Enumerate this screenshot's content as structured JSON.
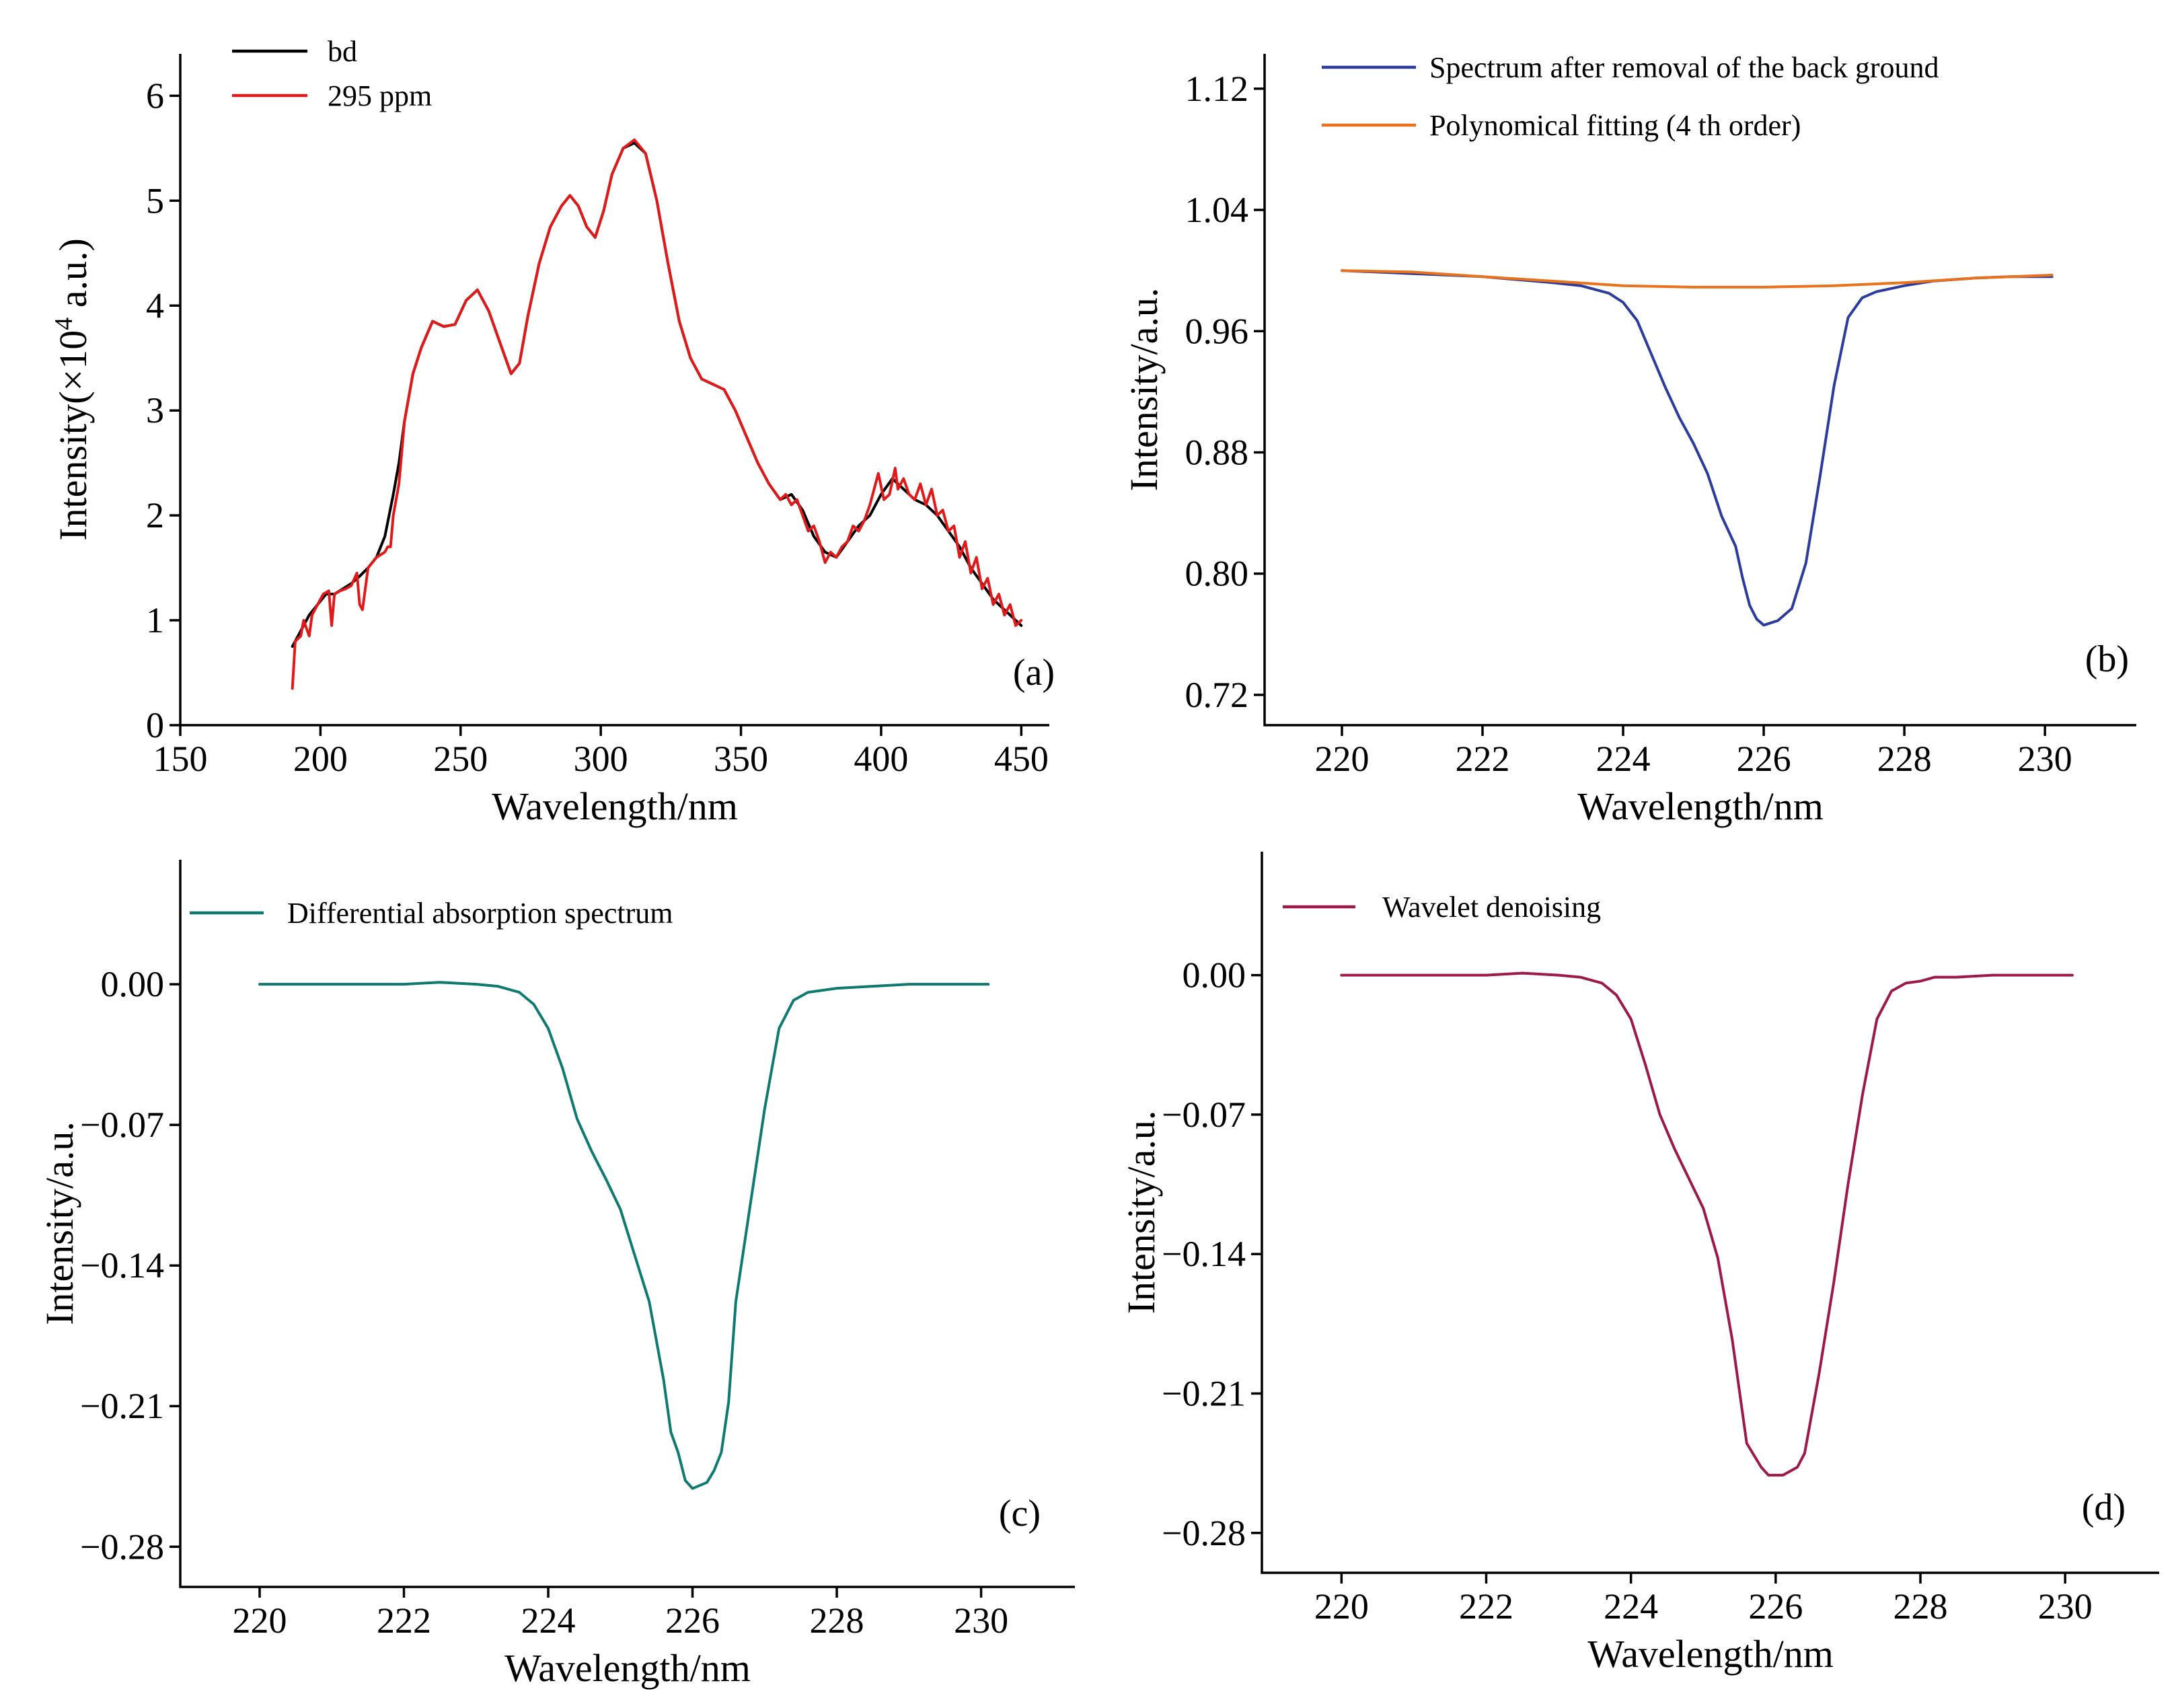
{
  "chart_data": [
    {
      "panel": "(a)",
      "type": "line",
      "xlabel": "Wavelength/nm",
      "ylabel_prefix": "Intensity(×10",
      "ylabel_sup": "4",
      "ylabel_suffix": " a.u.)",
      "xlim": [
        150,
        460
      ],
      "ylim": [
        0,
        6.4
      ],
      "xticks": [
        150,
        200,
        250,
        300,
        350,
        400,
        450
      ],
      "yticks": [
        0,
        1,
        2,
        3,
        4,
        5,
        6
      ],
      "xtick_labels": [
        "150",
        "200",
        "250",
        "300",
        "350",
        "400",
        "450"
      ],
      "ytick_labels": [
        "0",
        "1",
        "2",
        "3",
        "4",
        "5",
        "6"
      ],
      "legend_position": "top-left",
      "series": [
        {
          "name": "bd",
          "color": "#000000",
          "x": [
            190,
            193,
            196,
            199,
            202,
            205,
            208,
            211,
            214,
            217,
            220,
            223,
            226,
            228,
            230,
            233,
            236,
            240,
            244,
            248,
            252,
            256,
            260,
            264,
            268,
            271,
            274,
            278,
            282,
            286,
            289,
            292,
            295,
            298,
            301,
            304,
            308,
            312,
            316,
            320,
            324,
            328,
            332,
            336,
            340,
            344,
            348,
            352,
            356,
            360,
            364,
            368,
            372,
            376,
            380,
            384,
            388,
            392,
            396,
            400,
            404,
            408,
            412,
            416,
            420,
            424,
            428,
            432,
            436,
            440,
            444,
            448,
            450
          ],
          "y": [
            0.75,
            0.9,
            1.05,
            1.15,
            1.25,
            1.25,
            1.3,
            1.35,
            1.42,
            1.5,
            1.6,
            1.8,
            2.2,
            2.5,
            2.9,
            3.35,
            3.6,
            3.85,
            3.8,
            3.82,
            4.05,
            4.15,
            3.95,
            3.65,
            3.35,
            3.45,
            3.9,
            4.4,
            4.75,
            4.95,
            5.05,
            4.95,
            4.75,
            4.65,
            4.9,
            5.25,
            5.5,
            5.55,
            5.45,
            5.0,
            4.4,
            3.85,
            3.5,
            3.3,
            3.25,
            3.2,
            3.0,
            2.75,
            2.5,
            2.3,
            2.15,
            2.2,
            2.05,
            1.8,
            1.65,
            1.6,
            1.75,
            1.9,
            2.0,
            2.2,
            2.35,
            2.25,
            2.15,
            2.1,
            2.0,
            1.85,
            1.7,
            1.5,
            1.35,
            1.2,
            1.1,
            1.0,
            0.95
          ]
        },
        {
          "name": "295  ppm",
          "color": "#e01a1a",
          "x": [
            190,
            191,
            193,
            194,
            196,
            197,
            199,
            201,
            203,
            204,
            205,
            207,
            209,
            211,
            213,
            214,
            215,
            217,
            220,
            223,
            224,
            225,
            226,
            228,
            230,
            233,
            236,
            240,
            244,
            248,
            252,
            256,
            260,
            264,
            268,
            271,
            274,
            278,
            282,
            286,
            289,
            292,
            295,
            298,
            301,
            304,
            308,
            312,
            316,
            320,
            324,
            328,
            332,
            336,
            340,
            344,
            348,
            352,
            356,
            360,
            364,
            366,
            368,
            370,
            372,
            374,
            376,
            378,
            380,
            382,
            384,
            386,
            388,
            390,
            392,
            394,
            396,
            398,
            399,
            401,
            403,
            405,
            406,
            408,
            410,
            412,
            414,
            416,
            418,
            420,
            422,
            424,
            426,
            428,
            430,
            432,
            434,
            436,
            438,
            440,
            442,
            444,
            446,
            448,
            450
          ],
          "y": [
            0.35,
            0.8,
            0.85,
            1.0,
            0.85,
            1.05,
            1.15,
            1.25,
            1.28,
            0.95,
            1.25,
            1.28,
            1.3,
            1.33,
            1.45,
            1.15,
            1.1,
            1.5,
            1.6,
            1.65,
            1.7,
            1.7,
            2.0,
            2.3,
            2.9,
            3.35,
            3.6,
            3.85,
            3.8,
            3.82,
            4.05,
            4.15,
            3.95,
            3.65,
            3.35,
            3.45,
            3.9,
            4.4,
            4.75,
            4.95,
            5.05,
            4.95,
            4.75,
            4.65,
            4.9,
            5.25,
            5.5,
            5.58,
            5.45,
            5.0,
            4.4,
            3.85,
            3.5,
            3.3,
            3.25,
            3.2,
            3.0,
            2.75,
            2.5,
            2.3,
            2.15,
            2.2,
            2.1,
            2.15,
            2.0,
            1.85,
            1.9,
            1.75,
            1.55,
            1.65,
            1.6,
            1.7,
            1.75,
            1.9,
            1.85,
            1.95,
            2.1,
            2.3,
            2.4,
            2.15,
            2.2,
            2.45,
            2.25,
            2.35,
            2.2,
            2.15,
            2.3,
            2.1,
            2.25,
            2.0,
            2.05,
            1.85,
            1.9,
            1.6,
            1.75,
            1.45,
            1.6,
            1.3,
            1.4,
            1.15,
            1.25,
            1.05,
            1.15,
            0.95,
            1.0
          ]
        }
      ]
    },
    {
      "panel": "(b)",
      "type": "line",
      "xlabel": "Wavelength/nm",
      "ylabel": "Intensity/a.u.",
      "xlim": [
        218.9,
        231.3
      ],
      "ylim": [
        0.7,
        1.143
      ],
      "xticks": [
        220,
        222,
        224,
        226,
        228,
        230
      ],
      "yticks": [
        0.72,
        0.8,
        0.88,
        0.96,
        1.04,
        1.12
      ],
      "xtick_labels": [
        "220",
        "222",
        "224",
        "226",
        "228",
        "230"
      ],
      "ytick_labels": [
        "0.72",
        "0.80",
        "0.88",
        "0.96",
        "1.04",
        "1.12"
      ],
      "legend_position": "top-left",
      "series": [
        {
          "name": "Spectrum after removal of the back ground",
          "color": "#2c3c9c",
          "x": [
            220.0,
            221.0,
            222.0,
            223.0,
            223.4,
            223.8,
            224.0,
            224.2,
            224.4,
            224.6,
            224.8,
            225.0,
            225.2,
            225.4,
            225.6,
            225.7,
            225.8,
            225.9,
            226.0,
            226.2,
            226.4,
            226.6,
            226.8,
            227.0,
            227.2,
            227.4,
            227.6,
            228.0,
            228.4,
            229.0,
            229.5,
            230.1
          ],
          "y": [
            1.0,
            0.998,
            0.996,
            0.992,
            0.99,
            0.985,
            0.979,
            0.967,
            0.945,
            0.923,
            0.903,
            0.886,
            0.866,
            0.838,
            0.818,
            0.797,
            0.779,
            0.77,
            0.766,
            0.769,
            0.777,
            0.807,
            0.864,
            0.924,
            0.969,
            0.982,
            0.986,
            0.99,
            0.993,
            0.995,
            0.996,
            0.996
          ]
        },
        {
          "name": "Polynomical fitting (4 th order)",
          "color": "#e8731c",
          "x": [
            220.0,
            221.0,
            222.0,
            223.0,
            224.0,
            225.0,
            226.0,
            227.0,
            228.0,
            229.0,
            230.1
          ],
          "y": [
            1.0,
            0.999,
            0.996,
            0.993,
            0.99,
            0.989,
            0.989,
            0.99,
            0.992,
            0.995,
            0.997
          ]
        }
      ]
    },
    {
      "panel": "(c)",
      "type": "line",
      "xlabel": "Wavelength/nm",
      "ylabel": "Intensity/a.u.",
      "xlim": [
        218.9,
        231.3
      ],
      "ylim": [
        -0.3,
        0.062
      ],
      "xticks": [
        220,
        222,
        224,
        226,
        228,
        230
      ],
      "yticks": [
        -0.28,
        -0.21,
        -0.14,
        -0.07,
        0.0
      ],
      "xtick_labels": [
        "220",
        "222",
        "224",
        "226",
        "228",
        "230"
      ],
      "ytick_labels": [
        "−0.28",
        "−0.21",
        "−0.14",
        "−0.07",
        "0.00"
      ],
      "legend_position": "top-left",
      "series": [
        {
          "name": "Differential absorption spectrum",
          "color": "#0f7a70",
          "x": [
            220.0,
            221.0,
            222.0,
            222.5,
            223.0,
            223.3,
            223.6,
            223.8,
            224.0,
            224.2,
            224.4,
            224.6,
            224.8,
            225.0,
            225.2,
            225.4,
            225.6,
            225.7,
            225.8,
            225.9,
            226.0,
            226.2,
            226.3,
            226.4,
            226.5,
            226.6,
            226.8,
            227.0,
            227.2,
            227.4,
            227.6,
            228.0,
            228.5,
            229.0,
            229.5,
            230.1
          ],
          "y": [
            0.0,
            0.0,
            0.0,
            0.001,
            0.0,
            -0.001,
            -0.004,
            -0.01,
            -0.022,
            -0.042,
            -0.067,
            -0.083,
            -0.097,
            -0.112,
            -0.135,
            -0.158,
            -0.197,
            -0.223,
            -0.233,
            -0.247,
            -0.251,
            -0.248,
            -0.242,
            -0.233,
            -0.208,
            -0.158,
            -0.11,
            -0.062,
            -0.022,
            -0.008,
            -0.004,
            -0.002,
            -0.001,
            0.0,
            0.0,
            0.0
          ]
        }
      ]
    },
    {
      "panel": "(d)",
      "type": "line",
      "xlabel": "Wavelength/nm",
      "ylabel": "Intensity/a.u.",
      "xlim": [
        218.9,
        231.3
      ],
      "ylim": [
        -0.3,
        0.062
      ],
      "xticks": [
        220,
        222,
        224,
        226,
        228,
        230
      ],
      "yticks": [
        -0.28,
        -0.21,
        -0.14,
        -0.07,
        0.0
      ],
      "xtick_labels": [
        "220",
        "222",
        "224",
        "226",
        "228",
        "230"
      ],
      "ytick_labels": [
        "−0.28",
        "−0.21",
        "−0.14",
        "−0.07",
        "0.00"
      ],
      "legend_position": "top-left",
      "series": [
        {
          "name": "Wavelet denoising",
          "color": "#9c1a4a",
          "x": [
            220.0,
            221.0,
            222.0,
            222.5,
            223.0,
            223.3,
            223.6,
            223.8,
            224.0,
            224.2,
            224.4,
            224.6,
            224.8,
            225.0,
            225.2,
            225.4,
            225.6,
            225.8,
            225.9,
            226.0,
            226.1,
            226.2,
            226.3,
            226.4,
            226.6,
            226.8,
            227.0,
            227.2,
            227.4,
            227.6,
            227.8,
            228.0,
            228.2,
            228.5,
            229.0,
            229.5,
            230.1
          ],
          "y": [
            0.0,
            0.0,
            0.0,
            0.001,
            0.0,
            -0.001,
            -0.004,
            -0.01,
            -0.022,
            -0.045,
            -0.07,
            -0.087,
            -0.102,
            -0.117,
            -0.142,
            -0.183,
            -0.235,
            -0.247,
            -0.251,
            -0.251,
            -0.251,
            -0.249,
            -0.247,
            -0.24,
            -0.2,
            -0.155,
            -0.105,
            -0.06,
            -0.022,
            -0.008,
            -0.004,
            -0.003,
            -0.001,
            -0.001,
            0.0,
            0.0,
            0.0
          ]
        }
      ]
    }
  ]
}
